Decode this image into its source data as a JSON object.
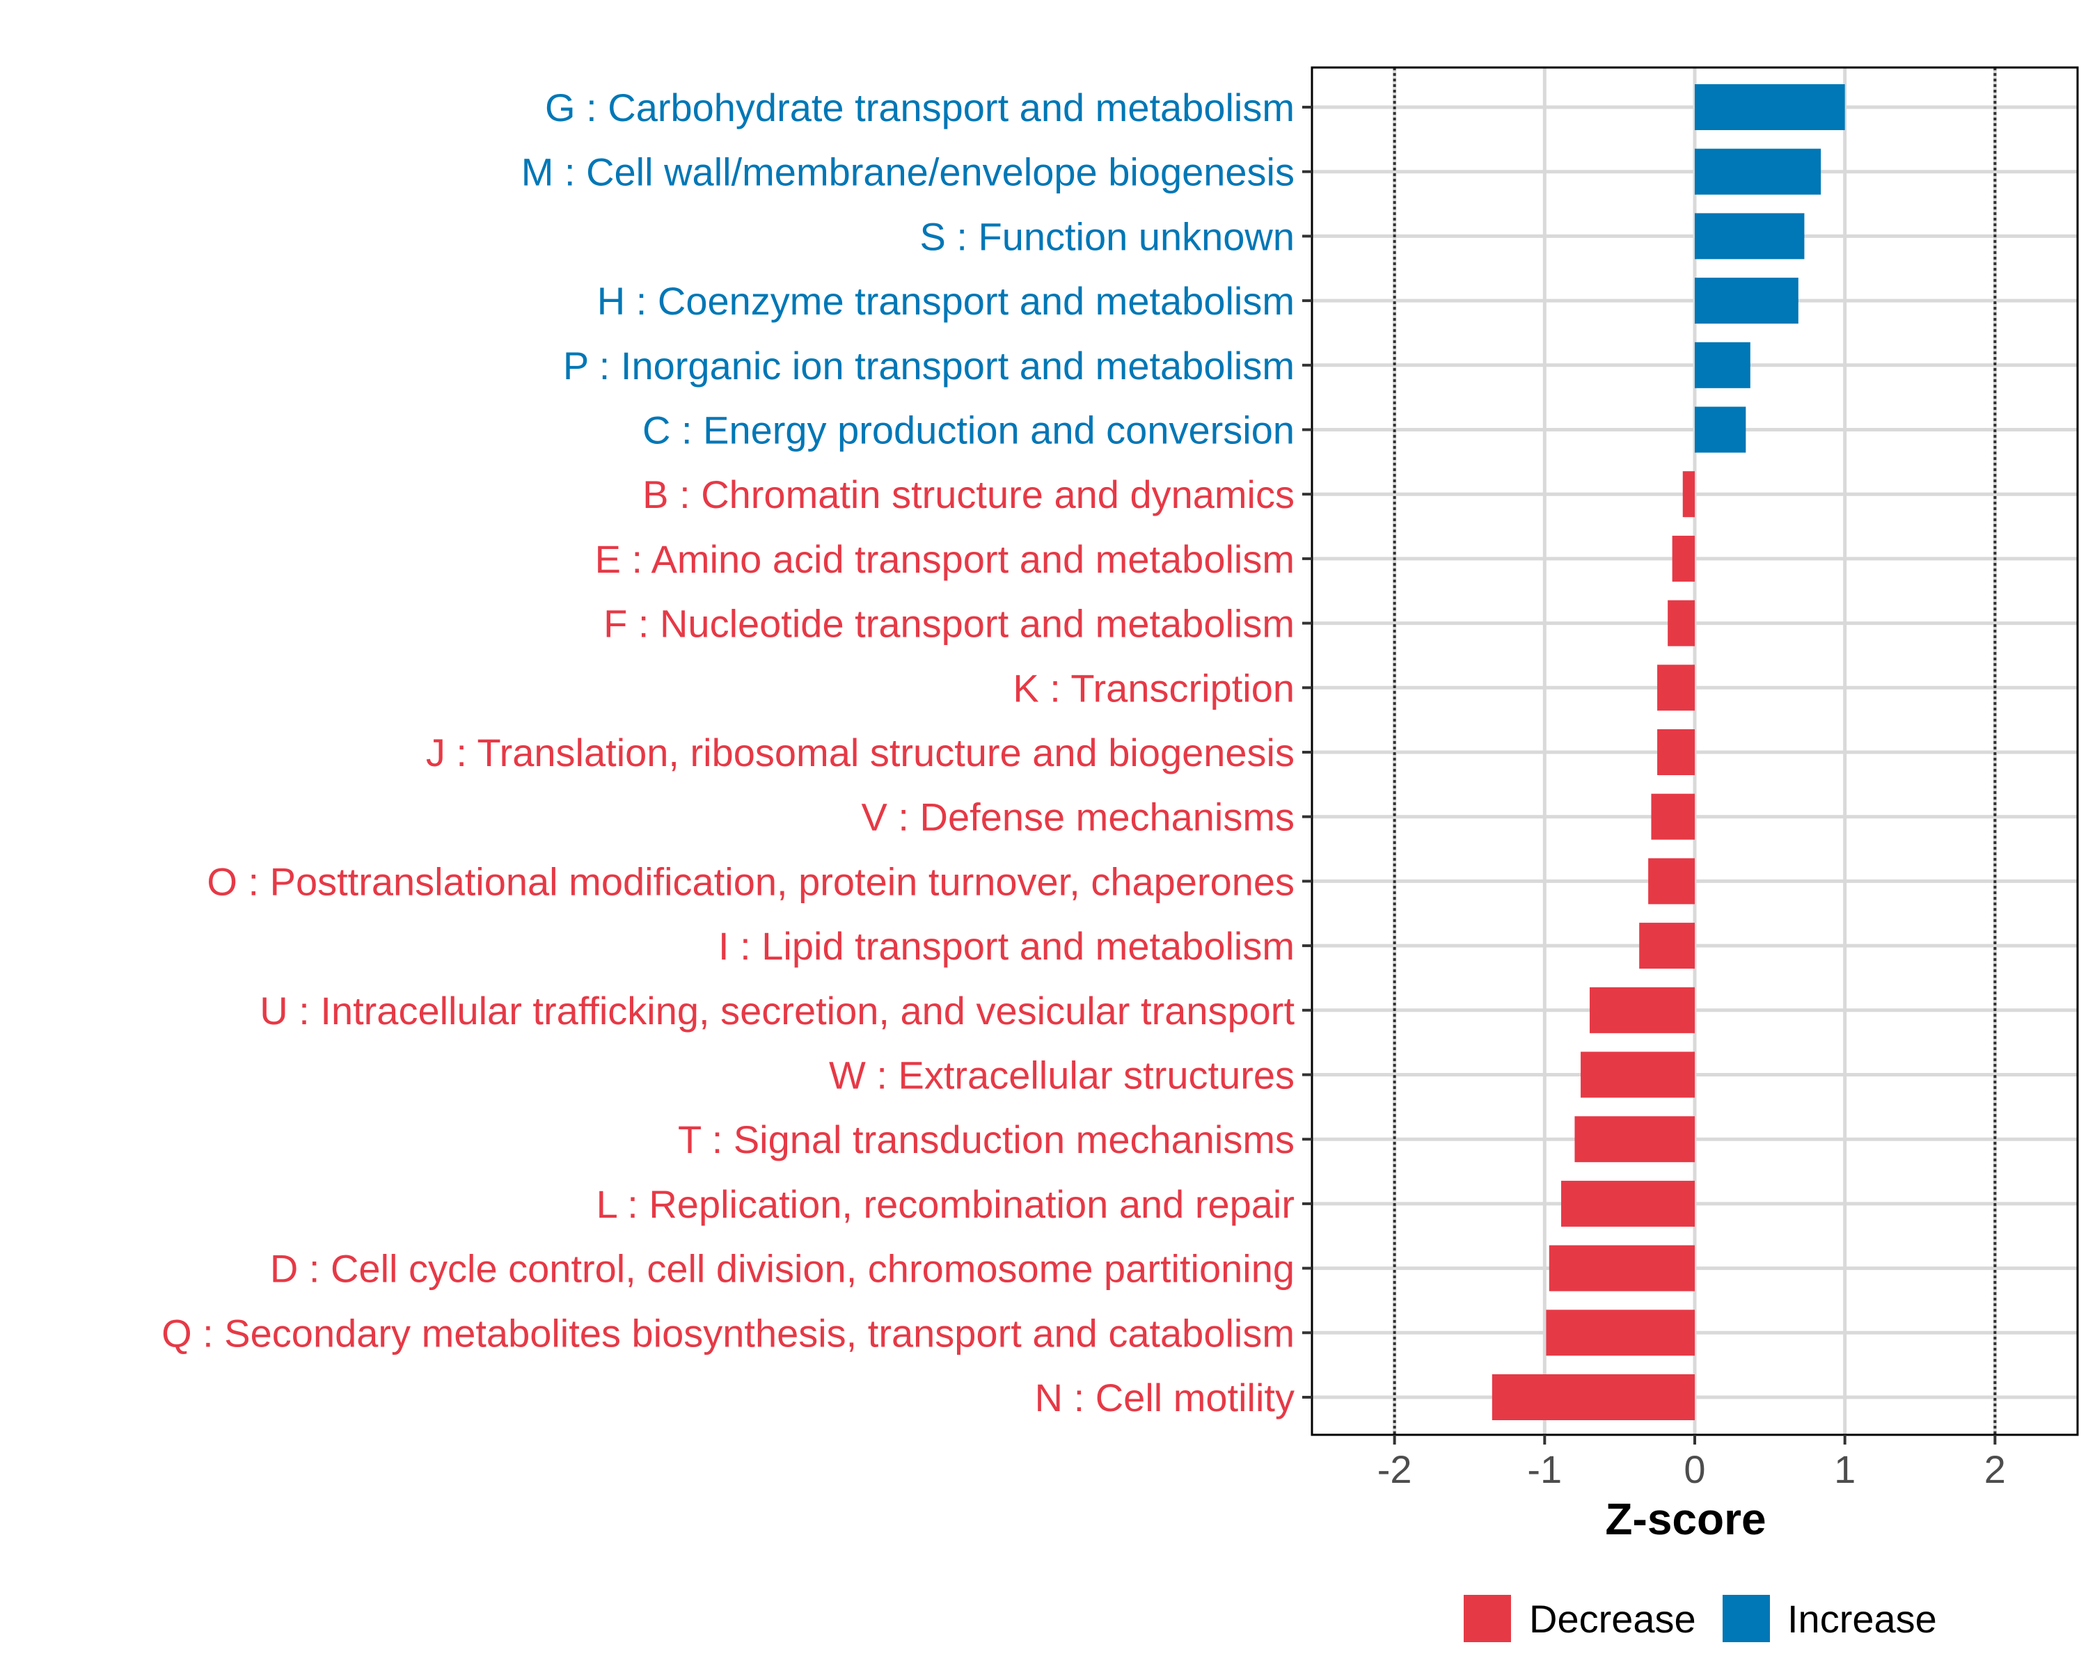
{
  "chart_data": {
    "type": "bar",
    "orientation": "horizontal",
    "xlabel": "Z-score",
    "xlim": [
      -2.55,
      2.55
    ],
    "xticks": [
      -2,
      -1,
      0,
      1,
      2
    ],
    "xtick_labels": [
      "-2",
      "-1",
      "0",
      "1",
      "2"
    ],
    "reference_lines": [
      -2,
      2
    ],
    "grid": true,
    "colors": {
      "Decrease": "#e63946",
      "Increase": "#0077b6"
    },
    "legend": {
      "placement": "bottom",
      "items": [
        {
          "label": "Decrease",
          "color": "#e63946"
        },
        {
          "label": "Increase",
          "color": "#0077b6"
        }
      ]
    },
    "categories": [
      {
        "label": "G : Carbohydrate transport and metabolism",
        "value": 1.0,
        "direction": "Increase"
      },
      {
        "label": "M : Cell wall/membrane/envelope biogenesis",
        "value": 0.84,
        "direction": "Increase"
      },
      {
        "label": "S : Function unknown",
        "value": 0.73,
        "direction": "Increase"
      },
      {
        "label": "H : Coenzyme transport and metabolism",
        "value": 0.69,
        "direction": "Increase"
      },
      {
        "label": "P : Inorganic ion transport and metabolism",
        "value": 0.37,
        "direction": "Increase"
      },
      {
        "label": "C : Energy production and conversion",
        "value": 0.34,
        "direction": "Increase"
      },
      {
        "label": "B : Chromatin structure and dynamics",
        "value": -0.08,
        "direction": "Decrease"
      },
      {
        "label": "E : Amino acid transport and metabolism",
        "value": -0.15,
        "direction": "Decrease"
      },
      {
        "label": "F : Nucleotide transport and metabolism",
        "value": -0.18,
        "direction": "Decrease"
      },
      {
        "label": "K : Transcription",
        "value": -0.25,
        "direction": "Decrease"
      },
      {
        "label": "J : Translation, ribosomal structure and biogenesis",
        "value": -0.25,
        "direction": "Decrease"
      },
      {
        "label": "V : Defense mechanisms",
        "value": -0.29,
        "direction": "Decrease"
      },
      {
        "label": "O : Posttranslational modification, protein turnover, chaperones",
        "value": -0.31,
        "direction": "Decrease"
      },
      {
        "label": "I : Lipid transport and metabolism",
        "value": -0.37,
        "direction": "Decrease"
      },
      {
        "label": "U : Intracellular trafficking, secretion, and vesicular transport",
        "value": -0.7,
        "direction": "Decrease"
      },
      {
        "label": "W : Extracellular structures",
        "value": -0.76,
        "direction": "Decrease"
      },
      {
        "label": "T : Signal transduction mechanisms",
        "value": -0.8,
        "direction": "Decrease"
      },
      {
        "label": "L : Replication, recombination and repair",
        "value": -0.89,
        "direction": "Decrease"
      },
      {
        "label": "D : Cell cycle control, cell division, chromosome partitioning",
        "value": -0.97,
        "direction": "Decrease"
      },
      {
        "label": "Q : Secondary metabolites biosynthesis, transport and catabolism",
        "value": -0.99,
        "direction": "Decrease"
      },
      {
        "label": "N : Cell motility",
        "value": -1.35,
        "direction": "Decrease"
      }
    ]
  }
}
